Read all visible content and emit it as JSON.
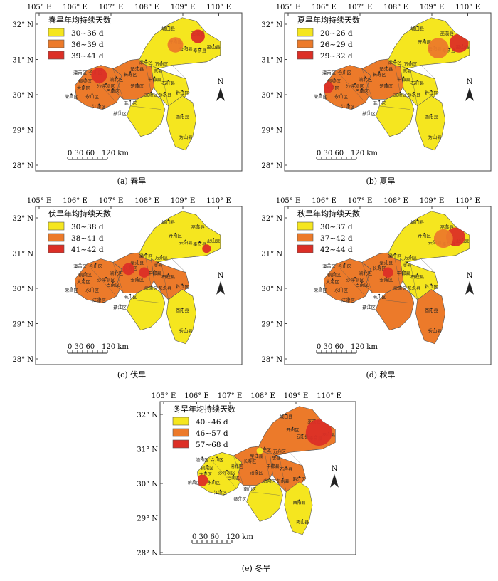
{
  "colors": {
    "low": "#f5e61f",
    "mid": "#ec7a2a",
    "high": "#dc2f26",
    "border": "#555555"
  },
  "lat_labels": [
    "32° N",
    "31° N",
    "30° N",
    "29° N",
    "28° N"
  ],
  "lon_labels": [
    "105° E",
    "106° E",
    "107° E",
    "108° E",
    "109° E",
    "110° E"
  ],
  "north": "N",
  "scale": {
    "ticks": "0 30 60",
    "end": "120 km"
  },
  "panels": [
    {
      "key": "a",
      "caption": "(a)  春旱",
      "legend_title": "春旱年均持续天数",
      "legend": [
        "30~36 d",
        "36~39 d",
        "39~41 d"
      ],
      "width": "wide"
    },
    {
      "key": "b",
      "caption": "(b)  夏旱",
      "legend_title": "夏旱年均持续天数",
      "legend": [
        "20~26 d",
        "26~29 d",
        "29~32 d"
      ],
      "width": "wide"
    },
    {
      "key": "c",
      "caption": "(c)  伏旱",
      "legend_title": "伏旱年均持续天数",
      "legend": [
        "30~38 d",
        "38~41 d",
        "41~42 d"
      ],
      "width": "wide"
    },
    {
      "key": "d",
      "caption": "(d)  秋旱",
      "legend_title": "秋旱年均持续天数",
      "legend": [
        "30~37 d",
        "37~42 d",
        "42~44 d"
      ],
      "width": "wide"
    },
    {
      "key": "e",
      "caption": "(e)  冬旱",
      "legend_title": "冬旱年均持续天数",
      "legend": [
        "40~46 d",
        "46~57 d",
        "57~68 d"
      ],
      "width": "narrow"
    }
  ],
  "places": {
    "chengkou": "城口县",
    "wuxi": "巫溪县",
    "wushan": "巫山县",
    "kaizhou": "开州区",
    "yunyang": "云阳县",
    "fengjie": "奉节县",
    "liangping": "梁平区",
    "wanzhou": "万州区",
    "zhongxian": "忠县",
    "dianjiang": "垫江县",
    "shizhu": "石柱县",
    "fengdu": "丰都县",
    "tongnan": "潼南区",
    "hechuan": "合川区",
    "tongliang": "铜梁区",
    "changshou": "长寿区",
    "dazu": "大足区",
    "yubei": "渝北区",
    "rongchang": "荣昌区",
    "shapingba": "沙坪坝区",
    "fuling": "涪陵区",
    "yongchuan": "永川区",
    "banan": "巴南区",
    "wulong": "武隆区",
    "pengshui": "彭水县",
    "qianjiang": "黔江区",
    "jiangjin": "江津区",
    "nanchuan": "南川区",
    "qijiang": "綦江区",
    "youyang": "酉阳县",
    "xiushan": "秀山县"
  }
}
